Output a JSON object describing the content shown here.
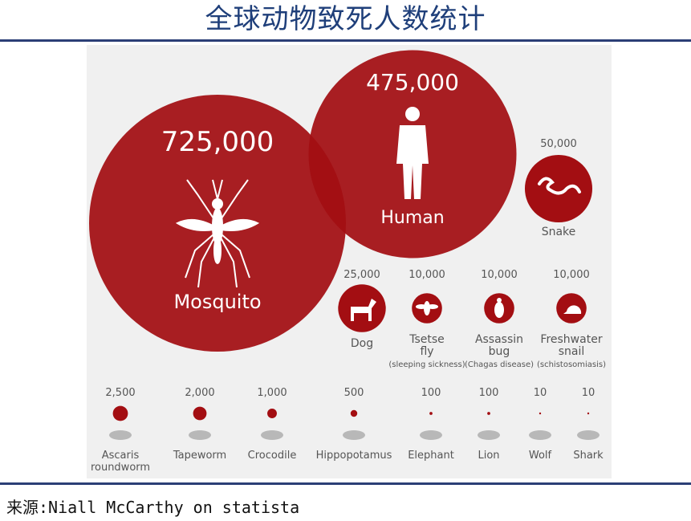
{
  "title": "全球动物致死人数统计",
  "source": "来源:Niall McCarthy on statista",
  "colors": {
    "circle": "#a30e12",
    "text_dark": "#555555",
    "title": "#1f3f7a",
    "panel": "#f0f0f0"
  },
  "chart_data": {
    "type": "bubble",
    "title": "",
    "xlabel": "",
    "ylabel": "",
    "series": [
      {
        "name": "",
        "items": [
          {
            "label": "Mosquito",
            "value_label": "725,000",
            "value": 725000,
            "icon": "mosquito-icon"
          },
          {
            "label": "Human",
            "value_label": "475,000",
            "value": 475000,
            "icon": "human-icon"
          },
          {
            "label": "Snake",
            "value_label": "50,000",
            "value": 50000,
            "icon": "snake-icon"
          },
          {
            "label": "Dog",
            "value_label": "25,000",
            "value": 25000,
            "icon": "dog-icon"
          },
          {
            "label": "Tsetse fly",
            "sublabel": "(sleeping sickness)",
            "value_label": "10,000",
            "value": 10000,
            "icon": "tsetse-fly-icon"
          },
          {
            "label": "Assassin bug",
            "sublabel": "(Chagas disease)",
            "value_label": "10,000",
            "value": 10000,
            "icon": "assassin-bug-icon"
          },
          {
            "label": "Freshwater snail",
            "sublabel": "(schistosomiasis)",
            "value_label": "10,000",
            "value": 10000,
            "icon": "snail-icon"
          },
          {
            "label": "Ascaris roundworm",
            "value_label": "2,500",
            "value": 2500,
            "icon": "roundworm-icon"
          },
          {
            "label": "Tapeworm",
            "value_label": "2,000",
            "value": 2000,
            "icon": "tapeworm-icon"
          },
          {
            "label": "Crocodile",
            "value_label": "1,000",
            "value": 1000,
            "icon": "crocodile-icon"
          },
          {
            "label": "Hippopotamus",
            "value_label": "500",
            "value": 500,
            "icon": "hippopotamus-icon"
          },
          {
            "label": "Elephant",
            "value_label": "100",
            "value": 100,
            "icon": "elephant-icon"
          },
          {
            "label": "Lion",
            "value_label": "100",
            "value": 100,
            "icon": "lion-icon"
          },
          {
            "label": "Wolf",
            "value_label": "10",
            "value": 10,
            "icon": "wolf-icon"
          },
          {
            "label": "Shark",
            "value_label": "10",
            "value": 10,
            "icon": "shark-icon"
          }
        ]
      }
    ]
  }
}
